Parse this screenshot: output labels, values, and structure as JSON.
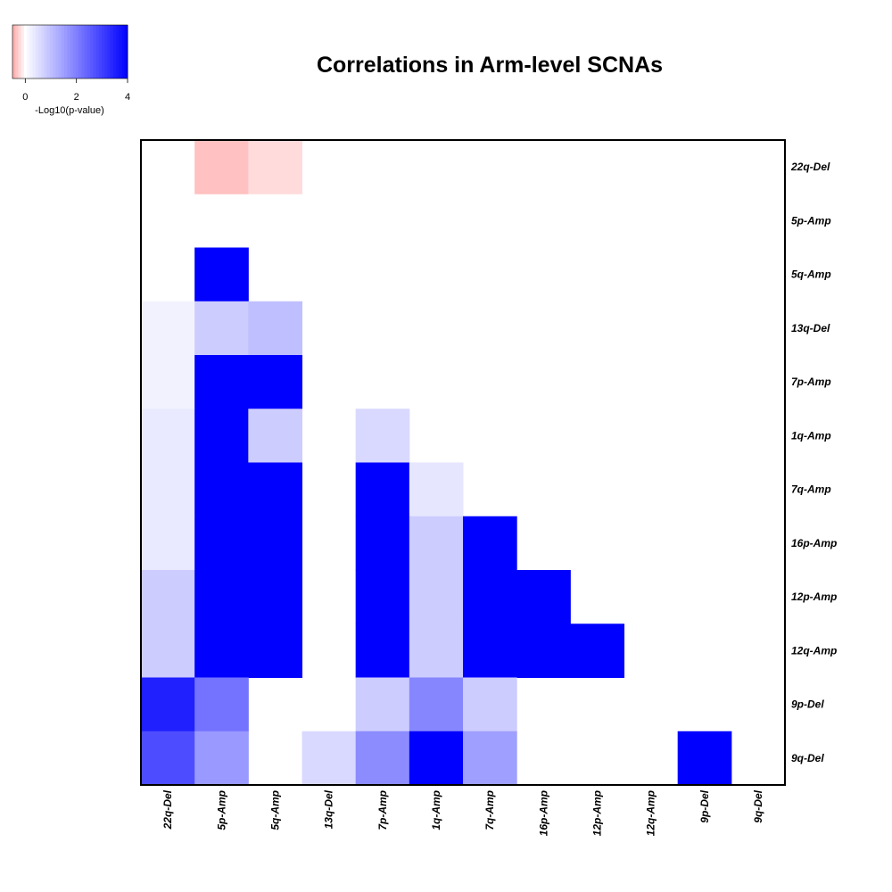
{
  "chart_data": {
    "type": "heatmap",
    "title": "Correlations in Arm-level SCNAs",
    "rows": [
      "22q-Del",
      "5p-Amp",
      "5q-Amp",
      "13q-Del",
      "7p-Amp",
      "1q-Amp",
      "7q-Amp",
      "16p-Amp",
      "12p-Amp",
      "12q-Amp",
      "9p-Del",
      "9q-Del"
    ],
    "columns": [
      "22q-Del",
      "5p-Amp",
      "5q-Amp",
      "13q-Del",
      "7p-Amp",
      "1q-Amp",
      "7q-Amp",
      "16p-Amp",
      "12p-Amp",
      "12q-Amp",
      "9p-Del",
      "9q-Del"
    ],
    "values": [
      [
        null,
        -0.35,
        -0.2,
        null,
        null,
        null,
        null,
        null,
        null,
        null,
        null,
        null
      ],
      [
        null,
        null,
        null,
        null,
        null,
        null,
        null,
        null,
        null,
        null,
        null,
        null
      ],
      [
        null,
        4,
        null,
        null,
        null,
        null,
        null,
        null,
        null,
        null,
        null,
        null
      ],
      [
        0.2,
        0.8,
        1.0,
        null,
        null,
        null,
        null,
        null,
        null,
        null,
        null,
        null
      ],
      [
        0.2,
        4,
        4,
        null,
        null,
        null,
        null,
        null,
        null,
        null,
        null,
        null
      ],
      [
        0.35,
        4,
        0.8,
        null,
        0.6,
        null,
        null,
        null,
        null,
        null,
        null,
        null
      ],
      [
        0.35,
        4,
        4,
        null,
        4,
        0.4,
        null,
        null,
        null,
        null,
        null,
        null
      ],
      [
        0.35,
        4,
        4,
        null,
        4,
        0.8,
        4,
        null,
        null,
        null,
        null,
        null
      ],
      [
        0.8,
        4,
        4,
        null,
        4,
        0.8,
        4,
        4,
        null,
        null,
        null,
        null
      ],
      [
        0.8,
        4,
        4,
        null,
        4,
        0.8,
        4,
        4,
        4,
        null,
        null,
        null
      ],
      [
        3.5,
        2.2,
        null,
        null,
        0.8,
        1.9,
        0.8,
        null,
        null,
        null,
        null,
        null
      ],
      [
        2.8,
        1.6,
        null,
        0.6,
        1.8,
        4,
        1.5,
        null,
        null,
        null,
        4,
        null
      ]
    ],
    "legend": {
      "title": "-Log10(p-value)",
      "ticks": [
        "0",
        "2",
        "4"
      ],
      "tick_values": [
        0,
        2,
        4
      ],
      "range": [
        -0.5,
        4
      ],
      "neg_color": "#ff0000",
      "pos_color": "#0000ff",
      "neg_limit": -0.5
    }
  }
}
